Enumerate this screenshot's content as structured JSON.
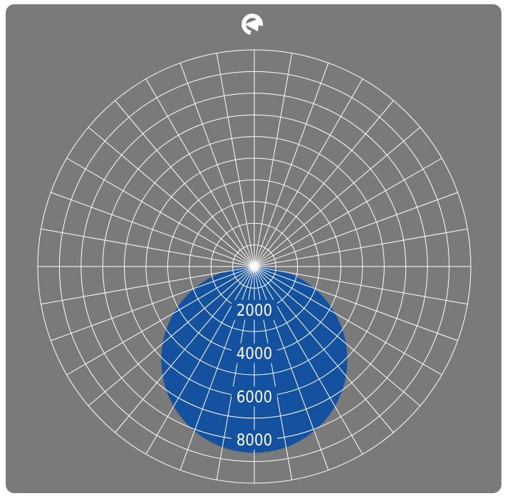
{
  "colors": {
    "background": "#7a7a7a",
    "grid": "#ffffff",
    "distribution_fill": "#1452a0",
    "label": "#ffffff"
  },
  "rotation_icon": "rotate-arrow-icon",
  "chart_data": {
    "type": "polar",
    "description_note": "Polar luminous intensity diagram; 0 deg points downward",
    "radial_ticks": [
      "2000",
      "4000",
      "6000",
      "8000"
    ],
    "radial_tick_values": [
      2000,
      4000,
      6000,
      8000
    ],
    "rmax": 10000,
    "grid": true,
    "angular_grid_step_deg": 10,
    "series": [
      {
        "shape": "circle-through-origin",
        "peak_angle_deg": 0,
        "peak_value": 8600
      }
    ]
  }
}
